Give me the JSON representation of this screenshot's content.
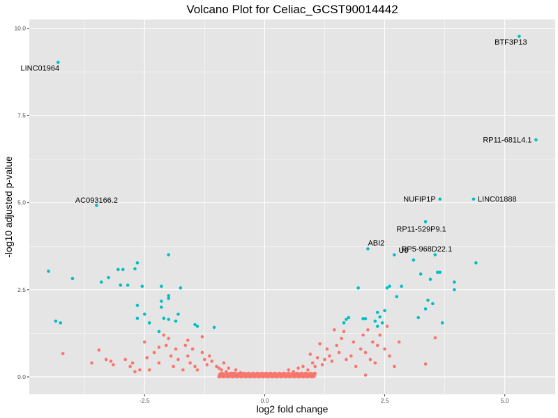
{
  "chart_data": {
    "type": "scatter",
    "title": "Volcano Plot for Celiac_GCST90014442",
    "xlabel": "log2 fold change",
    "ylabel": "-log10 adjusted p-value",
    "xlim": [
      -4.9,
      6.05
    ],
    "ylim": [
      -0.5,
      10.25
    ],
    "x_ticks": [
      -2.5,
      0.0,
      2.5,
      5.0
    ],
    "x_tick_labels": [
      "-2.5",
      "0.0",
      "2.5",
      "5.0"
    ],
    "y_ticks": [
      0.0,
      2.5,
      5.0,
      7.5,
      10.0
    ],
    "y_tick_labels": [
      "0.0",
      "2.5",
      "5.0",
      "7.5",
      "10.0"
    ],
    "grid": true,
    "legend": "none",
    "colors": {
      "panel_background": "#e5e5e5",
      "grid_major": "#ffffff",
      "significant": "#00bfc4",
      "not_significant": "#f8766d"
    },
    "series": [
      {
        "points": [
          [
            5.3,
            9.77
          ],
          [
            -4.3,
            9.02
          ],
          [
            5.65,
            6.8
          ],
          [
            -3.5,
            4.92
          ],
          [
            3.65,
            5.1
          ],
          [
            4.35,
            5.1
          ],
          [
            3.35,
            4.45
          ],
          [
            2.15,
            3.67
          ],
          [
            2.7,
            3.5
          ],
          [
            3.55,
            3.5
          ],
          [
            4.4,
            3.27
          ],
          [
            3.1,
            3.35
          ],
          [
            -4.5,
            3.03
          ],
          [
            -4.0,
            2.82
          ],
          [
            -3.4,
            2.72
          ],
          [
            -3.25,
            2.85
          ],
          [
            -3.05,
            3.08
          ],
          [
            -2.95,
            3.08
          ],
          [
            -2.7,
            3.1
          ],
          [
            -2.65,
            3.27
          ],
          [
            -2.0,
            3.5
          ],
          [
            -3.0,
            2.63
          ],
          [
            -2.85,
            2.63
          ],
          [
            -2.55,
            2.6
          ],
          [
            -2.15,
            2.6
          ],
          [
            -2.0,
            2.33
          ],
          [
            -2.0,
            2.25
          ],
          [
            -1.75,
            2.55
          ],
          [
            -2.65,
            2.05
          ],
          [
            -2.15,
            2.17
          ],
          [
            -2.5,
            1.8
          ],
          [
            -2.4,
            1.55
          ],
          [
            -2.65,
            1.68
          ],
          [
            -2.1,
            1.68
          ],
          [
            -2.0,
            1.65
          ],
          [
            -1.85,
            1.6
          ],
          [
            -1.8,
            1.8
          ],
          [
            -2.15,
            2.0
          ],
          [
            -2.2,
            1.3
          ],
          [
            -1.45,
            1.5
          ],
          [
            -1.4,
            1.45
          ],
          [
            -1.05,
            1.42
          ],
          [
            -4.35,
            1.6
          ],
          [
            -4.25,
            1.55
          ],
          [
            1.65,
            1.55
          ],
          [
            1.7,
            1.65
          ],
          [
            1.75,
            1.7
          ],
          [
            1.95,
            2.55
          ],
          [
            2.05,
            1.67
          ],
          [
            2.1,
            1.67
          ],
          [
            2.3,
            1.6
          ],
          [
            2.35,
            1.85
          ],
          [
            2.4,
            1.72
          ],
          [
            2.45,
            1.55
          ],
          [
            2.5,
            1.9
          ],
          [
            2.55,
            2.55
          ],
          [
            2.6,
            2.6
          ],
          [
            2.75,
            2.3
          ],
          [
            2.85,
            2.6
          ],
          [
            2.35,
            1.45
          ],
          [
            3.2,
            1.7
          ],
          [
            3.25,
            2.95
          ],
          [
            3.35,
            1.95
          ],
          [
            3.4,
            2.2
          ],
          [
            3.5,
            2.1
          ],
          [
            3.6,
            3.0
          ],
          [
            3.65,
            3.0
          ],
          [
            3.7,
            1.55
          ],
          [
            3.95,
            2.72
          ],
          [
            3.95,
            2.5
          ],
          [
            3.45,
            2.8
          ]
        ]
      },
      {
        "points": [
          [
            -4.2,
            0.67
          ],
          [
            -3.6,
            0.4
          ],
          [
            -3.45,
            0.77
          ],
          [
            -3.3,
            0.5
          ],
          [
            -3.2,
            0.45
          ],
          [
            -3.15,
            0.35
          ],
          [
            -2.9,
            0.5
          ],
          [
            -2.8,
            0.3
          ],
          [
            -2.75,
            0.4
          ],
          [
            -2.6,
            0.2
          ],
          [
            -2.45,
            0.55
          ],
          [
            -2.4,
            0.2
          ],
          [
            -2.3,
            0.7
          ],
          [
            -2.2,
            0.4
          ],
          [
            -2.1,
            1.2
          ],
          [
            -2.05,
            0.9
          ],
          [
            -1.95,
            0.6
          ],
          [
            -1.9,
            0.3
          ],
          [
            -1.85,
            0.8
          ],
          [
            -1.8,
            0.5
          ],
          [
            -1.7,
            0.2
          ],
          [
            -1.65,
            0.9
          ],
          [
            -1.6,
            0.6
          ],
          [
            -1.55,
            0.4
          ],
          [
            -1.5,
            0.8
          ],
          [
            -1.45,
            0.3
          ],
          [
            -1.4,
            0.2
          ],
          [
            -1.3,
            0.7
          ],
          [
            -1.25,
            0.5
          ],
          [
            -1.2,
            0.35
          ],
          [
            -1.15,
            0.6
          ],
          [
            -1.1,
            0.45
          ],
          [
            -1.0,
            0.3
          ],
          [
            -0.95,
            0.25
          ],
          [
            -0.9,
            0.2
          ],
          [
            -0.85,
            0.4
          ],
          [
            -0.8,
            0.15
          ],
          [
            -0.75,
            0.25
          ],
          [
            -0.65,
            0.1
          ],
          [
            -0.6,
            0.2
          ],
          [
            -0.5,
            0.12
          ],
          [
            -0.4,
            0.08
          ],
          [
            -2.0,
            1.1
          ],
          [
            -1.6,
            1.05
          ],
          [
            -1.3,
            1.15
          ],
          [
            -2.5,
            1.0
          ],
          [
            -2.2,
            0.85
          ],
          [
            -2.7,
            0.15
          ],
          [
            0.4,
            0.1
          ],
          [
            0.5,
            0.2
          ],
          [
            0.6,
            0.15
          ],
          [
            0.7,
            0.25
          ],
          [
            0.8,
            0.3
          ],
          [
            0.9,
            0.2
          ],
          [
            1.0,
            0.4
          ],
          [
            1.05,
            0.3
          ],
          [
            1.1,
            0.55
          ],
          [
            1.2,
            0.35
          ],
          [
            1.25,
            0.5
          ],
          [
            1.3,
            0.8
          ],
          [
            1.35,
            0.6
          ],
          [
            1.4,
            0.45
          ],
          [
            1.5,
            0.9
          ],
          [
            1.55,
            0.7
          ],
          [
            1.6,
            1.1
          ],
          [
            1.65,
            1.3
          ],
          [
            1.7,
            0.5
          ],
          [
            1.8,
            0.6
          ],
          [
            1.85,
            1.0
          ],
          [
            1.9,
            0.3
          ],
          [
            2.0,
            0.8
          ],
          [
            2.05,
            1.2
          ],
          [
            2.1,
            0.7
          ],
          [
            2.2,
            0.5
          ],
          [
            2.25,
            1.0
          ],
          [
            2.3,
            0.4
          ],
          [
            2.35,
            0.9
          ],
          [
            2.4,
            1.2
          ],
          [
            2.5,
            0.8
          ],
          [
            2.55,
            1.45
          ],
          [
            2.6,
            0.6
          ],
          [
            2.7,
            0.3
          ],
          [
            2.1,
            0.05
          ],
          [
            3.35,
            0.37
          ],
          [
            3.55,
            1.12
          ],
          [
            1.45,
            1.35
          ],
          [
            1.15,
            0.95
          ],
          [
            0.95,
            0.65
          ],
          [
            2.8,
            1.0
          ],
          [
            2.15,
            1.35
          ]
        ]
      }
    ],
    "annotations": [
      {
        "text": "BTF3P13",
        "x": 5.3,
        "y": 9.77
      },
      {
        "text": "LINC01964",
        "x": -4.3,
        "y": 9.02
      },
      {
        "text": "RP11-681L4.1",
        "x": 5.65,
        "y": 6.8
      },
      {
        "text": "AC093166.2",
        "x": -3.5,
        "y": 4.92
      },
      {
        "text": "NUFIP1P",
        "x": 3.65,
        "y": 5.1
      },
      {
        "text": "LINC01888",
        "x": 4.35,
        "y": 5.1
      },
      {
        "text": "RP11-529P9.1",
        "x": 3.35,
        "y": 4.45
      },
      {
        "text": "ABI2",
        "x": 2.15,
        "y": 3.67
      },
      {
        "text": "U6",
        "x": 2.7,
        "y": 3.5
      },
      {
        "text": "RP5-968D22.1",
        "x": 3.55,
        "y": 3.5
      }
    ]
  }
}
